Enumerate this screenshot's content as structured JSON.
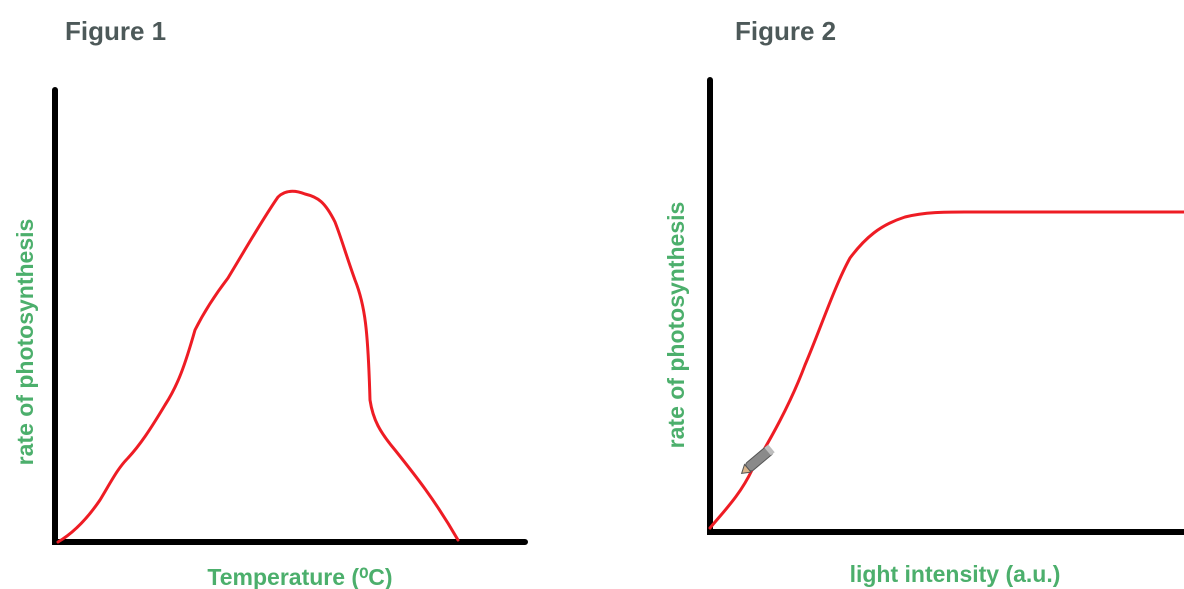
{
  "figures": [
    {
      "title": "Figure 1",
      "y_label": "rate of photosynthesis",
      "x_label": "Temperature (⁰C)"
    },
    {
      "title": "Figure 2",
      "y_label": "rate of photosynthesis",
      "x_label": "light intensity (a.u.)"
    }
  ]
}
